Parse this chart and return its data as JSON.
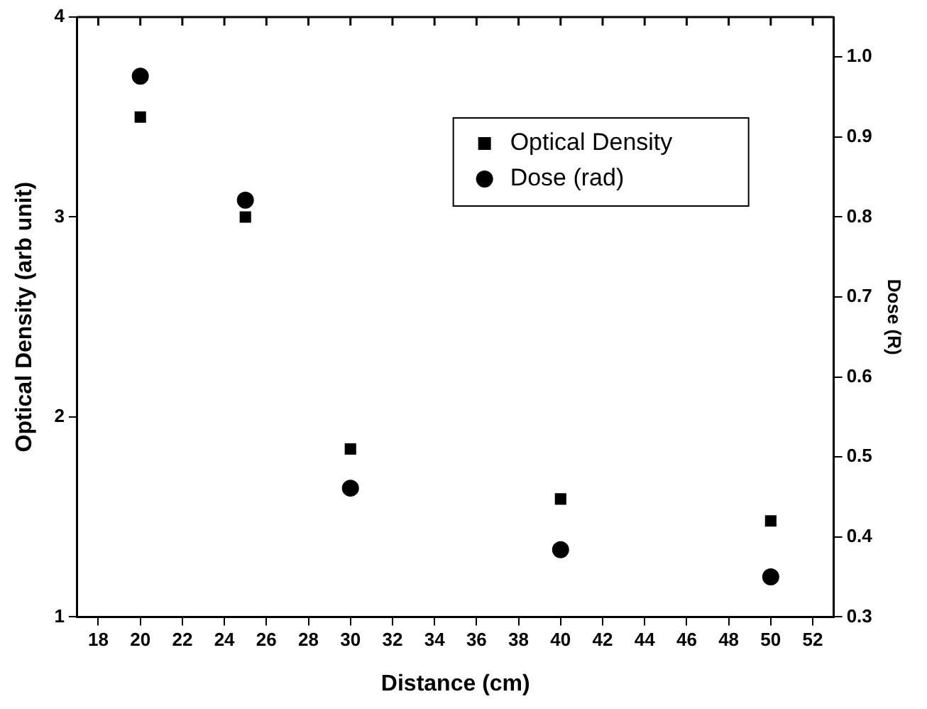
{
  "chart_data": {
    "type": "scatter",
    "xlabel": "Distance (cm)",
    "ylabel": "Optical Density (arb unit)",
    "y2label": "Dose (R)",
    "x": [
      20,
      25,
      30,
      40,
      50
    ],
    "xlim": [
      17,
      53
    ],
    "xticks": [
      18,
      20,
      22,
      24,
      26,
      28,
      30,
      32,
      34,
      36,
      38,
      40,
      42,
      44,
      46,
      48,
      50,
      52
    ],
    "ylim": [
      1,
      4
    ],
    "yticks": [
      1,
      2,
      3,
      4
    ],
    "y2lim": [
      0.3,
      1.05
    ],
    "y2ticks": [
      {
        "value": 0.3,
        "label": "0.3"
      },
      {
        "value": 0.4,
        "label": "0.4"
      },
      {
        "value": 0.5,
        "label": "0.5"
      },
      {
        "value": 0.6,
        "label": "0.6"
      },
      {
        "value": 0.7,
        "label": "0.7"
      },
      {
        "value": 0.8,
        "label": "0.8"
      },
      {
        "value": 0.9,
        "label": "0.9"
      },
      {
        "value": 1.0,
        "label": "1.0"
      }
    ],
    "series": [
      {
        "name": "Optical Density",
        "color": "#000000",
        "marker": "square",
        "values": [
          3.5,
          3.0,
          1.84,
          1.59,
          1.48
        ]
      },
      {
        "name": "Dose (rad)",
        "color": "#000000",
        "marker": "circle",
        "axis": "y2",
        "values": [
          0.976,
          0.821,
          0.461,
          0.384,
          0.35
        ]
      }
    ],
    "grid": false,
    "legend": "top right"
  }
}
